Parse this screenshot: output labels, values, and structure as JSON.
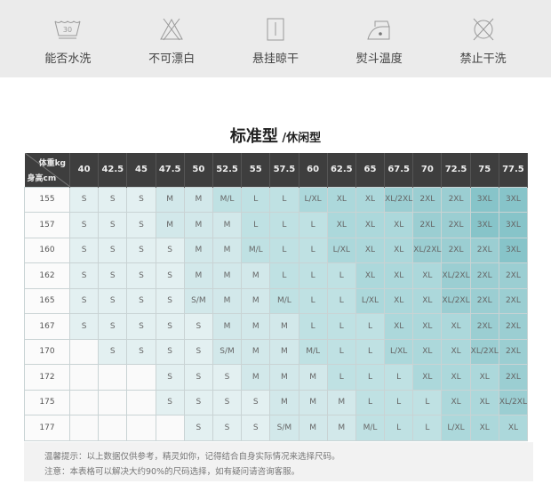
{
  "care": [
    {
      "icon": "wash-30-icon",
      "label": "能否水洗",
      "temp": "30"
    },
    {
      "icon": "no-bleach-icon",
      "label": "不可漂白"
    },
    {
      "icon": "hang-dry-icon",
      "label": "悬挂晾干"
    },
    {
      "icon": "iron-icon",
      "label": "熨斗温度"
    },
    {
      "icon": "no-dry-clean-icon",
      "label": "禁止干洗"
    }
  ],
  "title": {
    "main": "标准型",
    "sub": " /休闲型"
  },
  "table": {
    "weight_label": "体重kg",
    "height_label": "身高cm",
    "weights": [
      "40",
      "42.5",
      "45",
      "47.5",
      "50",
      "52.5",
      "55",
      "57.5",
      "60",
      "62.5",
      "65",
      "67.5",
      "70",
      "72.5",
      "75",
      "77.5"
    ],
    "rows": [
      {
        "height": "155",
        "sizes": [
          "S",
          "S",
          "S",
          "M",
          "M",
          "M/L",
          "L",
          "L",
          "L/XL",
          "XL",
          "XL",
          "XL/2XL",
          "2XL",
          "2XL",
          "3XL",
          "3XL"
        ]
      },
      {
        "height": "157",
        "sizes": [
          "S",
          "S",
          "S",
          "M",
          "M",
          "M",
          "L",
          "L",
          "L",
          "XL",
          "XL",
          "XL",
          "2XL",
          "2XL",
          "3XL",
          "3XL"
        ]
      },
      {
        "height": "160",
        "sizes": [
          "S",
          "S",
          "S",
          "S",
          "M",
          "M",
          "M/L",
          "L",
          "L",
          "L/XL",
          "XL",
          "XL",
          "XL/2XL",
          "2XL",
          "2XL",
          "3XL"
        ]
      },
      {
        "height": "162",
        "sizes": [
          "S",
          "S",
          "S",
          "S",
          "M",
          "M",
          "M",
          "L",
          "L",
          "L",
          "XL",
          "XL",
          "XL",
          "XL/2XL",
          "2XL",
          "2XL"
        ]
      },
      {
        "height": "165",
        "sizes": [
          "S",
          "S",
          "S",
          "S",
          "S/M",
          "M",
          "M",
          "M/L",
          "L",
          "L",
          "L/XL",
          "XL",
          "XL",
          "XL/2XL",
          "2XL",
          "2XL"
        ]
      },
      {
        "height": "167",
        "sizes": [
          "S",
          "S",
          "S",
          "S",
          "S",
          "M",
          "M",
          "M",
          "L",
          "L",
          "L",
          "XL",
          "XL",
          "XL",
          "2XL",
          "2XL"
        ]
      },
      {
        "height": "170",
        "sizes": [
          "",
          "S",
          "S",
          "S",
          "S",
          "S/M",
          "M",
          "M",
          "M/L",
          "L",
          "L",
          "L/XL",
          "XL",
          "XL",
          "XL/2XL",
          "2XL"
        ]
      },
      {
        "height": "172",
        "sizes": [
          "",
          "",
          "",
          "S",
          "S",
          "S",
          "M",
          "M",
          "M",
          "L",
          "L",
          "L",
          "XL",
          "XL",
          "XL",
          "2XL"
        ]
      },
      {
        "height": "175",
        "sizes": [
          "",
          "",
          "",
          "S",
          "S",
          "S",
          "S",
          "M",
          "M",
          "M",
          "L",
          "L",
          "L",
          "XL",
          "XL",
          "XL/2XL"
        ]
      },
      {
        "height": "177",
        "sizes": [
          "",
          "",
          "",
          "",
          "S",
          "S",
          "S",
          "S/M",
          "M",
          "M",
          "M/L",
          "L",
          "L",
          "L/XL",
          "XL",
          "XL"
        ]
      }
    ]
  },
  "colors": {
    "S": "#e3f0f1",
    "M": "#d2e8ea",
    "L": "#bfe1e3",
    "XL": "#acd8db",
    "2XL": "#9bced2",
    "3XL": "#87c4c9",
    "header": "#3e3e3e"
  },
  "notes": [
    "温馨提示：以上数据仅供参考，精灵如你，记得结合自身实际情况来选择尺码。",
    "注意：本表格可以解决大约90%的尺码选择，如有疑问请咨询客服。"
  ]
}
